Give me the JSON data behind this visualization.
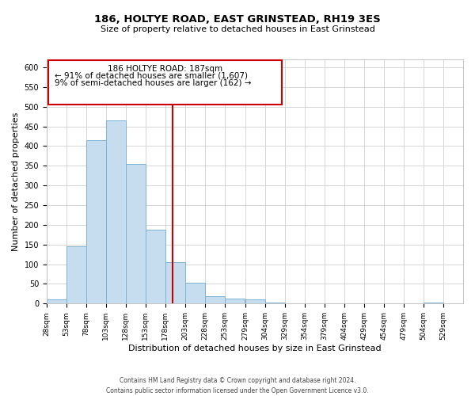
{
  "title": "186, HOLTYE ROAD, EAST GRINSTEAD, RH19 3ES",
  "subtitle": "Size of property relative to detached houses in East Grinstead",
  "xlabel": "Distribution of detached houses by size in East Grinstead",
  "ylabel": "Number of detached properties",
  "bin_edges": [
    28,
    53,
    78,
    103,
    128,
    153,
    178,
    203,
    228,
    253,
    279,
    304,
    329,
    354,
    379,
    404,
    429,
    454,
    479,
    504,
    529
  ],
  "bar_heights": [
    10,
    145,
    415,
    465,
    355,
    188,
    105,
    53,
    18,
    13,
    10,
    2,
    0,
    0,
    0,
    0,
    0,
    0,
    0,
    2
  ],
  "bar_color": "#c6ddf0",
  "bar_edge_color": "#7fb3d3",
  "reference_line_x": 187,
  "reference_line_color": "#cc0000",
  "annotation_box_color": "#cc0000",
  "annotation_text_line1": "186 HOLTYE ROAD: 187sqm",
  "annotation_text_line2": "← 91% of detached houses are smaller (1,607)",
  "annotation_text_line3": "9% of semi-detached houses are larger (162) →",
  "ylim": [
    0,
    620
  ],
  "xlim": [
    28,
    554
  ],
  "bin_width": 25,
  "tick_labels": [
    "28sqm",
    "53sqm",
    "78sqm",
    "103sqm",
    "128sqm",
    "153sqm",
    "178sqm",
    "203sqm",
    "228sqm",
    "253sqm",
    "279sqm",
    "304sqm",
    "329sqm",
    "354sqm",
    "379sqm",
    "404sqm",
    "429sqm",
    "454sqm",
    "479sqm",
    "504sqm",
    "529sqm"
  ],
  "yticks": [
    0,
    50,
    100,
    150,
    200,
    250,
    300,
    350,
    400,
    450,
    500,
    550,
    600
  ],
  "footer_line1": "Contains HM Land Registry data © Crown copyright and database right 2024.",
  "footer_line2": "Contains public sector information licensed under the Open Government Licence v3.0.",
  "background_color": "#ffffff",
  "grid_color": "#d0d0d0",
  "title_fontsize": 9.5,
  "subtitle_fontsize": 8,
  "axis_label_fontsize": 8,
  "tick_fontsize": 6.5,
  "annotation_fontsize": 7.5,
  "footer_fontsize": 5.5
}
